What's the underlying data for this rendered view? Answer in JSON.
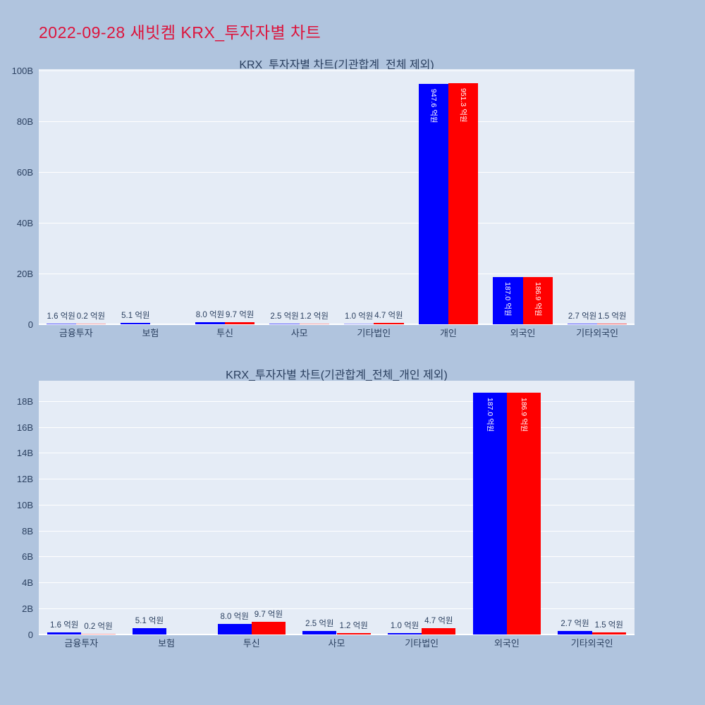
{
  "page": {
    "title": "2022-09-28 새빗켐 KRX_투자자별 차트",
    "title_color": "#DC143C",
    "background_color": "#B0C4DE",
    "plot_background_color": "#E5ECF6",
    "gridline_color": "#ffffff",
    "text_color": "#2a3f5f"
  },
  "chart_data": [
    {
      "type": "bar",
      "title": "KRX_투자자별 차트(기관합계_전체 제외)",
      "unit": "억원",
      "axis_unit": "B",
      "unit_to_axis_factor": 0.1,
      "legend": "none",
      "grid": true,
      "categories": [
        "금융투자",
        "보험",
        "투신",
        "사모",
        "기타법인",
        "개인",
        "외국인",
        "기타외국인"
      ],
      "series": [
        {
          "name": "blue",
          "color": "#0000FF",
          "values": [
            1.6,
            5.1,
            8.0,
            2.5,
            1.0,
            947.6,
            187.0,
            2.7
          ],
          "labels": [
            "1.6 억원",
            "5.1 억원",
            "8.0 억원",
            "2.5 억원",
            "1.0 억원",
            "947.6 억원",
            "187.0 억원",
            "2.7 억원"
          ]
        },
        {
          "name": "red",
          "color": "#FF0000",
          "values": [
            0.2,
            0,
            9.7,
            1.2,
            4.7,
            951.3,
            186.9,
            1.5
          ],
          "labels": [
            "0.2 억원",
            null,
            "9.7 억원",
            "1.2 억원",
            "4.7 억원",
            "951.3 억원",
            "186.9 억원",
            "1.5 억원"
          ]
        }
      ],
      "ytick_values": [
        0,
        20,
        40,
        60,
        80,
        100
      ],
      "ytick_labels": [
        "0",
        "20B",
        "40B",
        "60B",
        "80B",
        "100B"
      ],
      "ylim": [
        0,
        100.7
      ]
    },
    {
      "type": "bar",
      "title": "KRX_투자자별 차트(기관합계_전체_개인 제외)",
      "unit": "억원",
      "axis_unit": "B",
      "unit_to_axis_factor": 0.1,
      "legend": "none",
      "grid": true,
      "categories": [
        "금융투자",
        "보험",
        "투신",
        "사모",
        "기타법인",
        "외국인",
        "기타외국인"
      ],
      "series": [
        {
          "name": "blue",
          "color": "#0000FF",
          "values": [
            1.6,
            5.1,
            8.0,
            2.5,
            1.0,
            187.0,
            2.7
          ],
          "labels": [
            "1.6 억원",
            "5.1 억원",
            "8.0 억원",
            "2.5 억원",
            "1.0 억원",
            "187.0 억원",
            "2.7 억원"
          ]
        },
        {
          "name": "red",
          "color": "#FF0000",
          "values": [
            0.2,
            0,
            9.7,
            1.2,
            4.7,
            186.9,
            1.5
          ],
          "labels": [
            "0.2 억원",
            null,
            "9.7 억원",
            "1.2 억원",
            "4.7 억원",
            "186.9 억원",
            "1.5 억원"
          ]
        }
      ],
      "ytick_values": [
        0,
        2,
        4,
        6,
        8,
        10,
        12,
        14,
        16,
        18
      ],
      "ytick_labels": [
        "0",
        "2B",
        "4B",
        "6B",
        "8B",
        "10B",
        "12B",
        "14B",
        "16B",
        "18B"
      ],
      "ylim": [
        0,
        19.6
      ]
    }
  ]
}
